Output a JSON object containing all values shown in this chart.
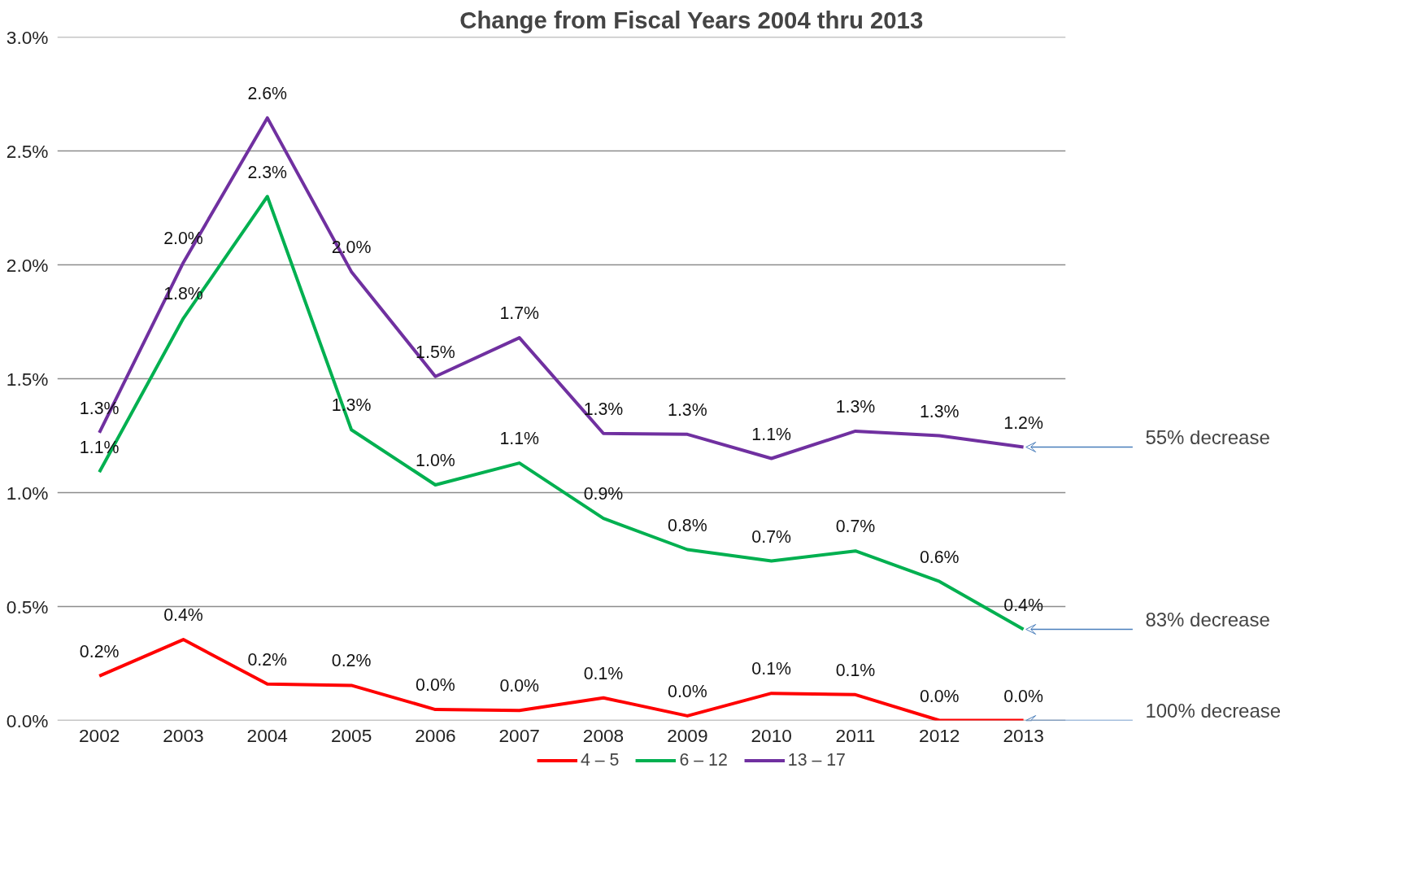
{
  "chart_data": {
    "type": "line",
    "title": "Change from Fiscal Years 2004 thru 2013",
    "categories": [
      "2002",
      "2003",
      "2004",
      "2005",
      "2006",
      "2007",
      "2008",
      "2009",
      "2010",
      "2011",
      "2012",
      "2013"
    ],
    "series": [
      {
        "name": "4 – 5",
        "color": "#ff0000",
        "values": [
          0.195,
          0.355,
          0.16,
          0.154,
          0.048,
          0.044,
          0.099,
          0.02,
          0.119,
          0.113,
          0.0,
          0.0
        ],
        "value_labels": [
          "0.2%",
          "0.4%",
          "0.2%",
          "0.2%",
          "0.0%",
          "0.0%",
          "0.1%",
          "0.0%",
          "0.1%",
          "0.1%",
          "0.0%",
          "0.0%"
        ]
      },
      {
        "name": "6 – 12",
        "color": "#00b050",
        "values": [
          1.09,
          1.765,
          2.3,
          1.276,
          1.034,
          1.13,
          0.887,
          0.75,
          0.7,
          0.744,
          0.61,
          0.4
        ],
        "value_labels": [
          "1.1%",
          "1.8%",
          "2.3%",
          "1.3%",
          "1.0%",
          "1.1%",
          "0.9%",
          "0.8%",
          "0.7%",
          "0.7%",
          "0.6%",
          "0.4%"
        ]
      },
      {
        "name": "13 – 17",
        "color": "#7030a0",
        "values": [
          1.263,
          2.01,
          2.645,
          1.97,
          1.51,
          1.68,
          1.26,
          1.256,
          1.15,
          1.27,
          1.25,
          1.2
        ],
        "value_labels": [
          "1.3%",
          "2.0%",
          "2.6%",
          "2.0%",
          "1.5%",
          "1.7%",
          "1.3%",
          "1.3%",
          "1.1%",
          "1.3%",
          "1.3%",
          "1.2%"
        ]
      }
    ],
    "ylim": [
      0,
      3.0
    ],
    "yticks": [
      {
        "value": 0,
        "label": "0.0%"
      },
      {
        "value": 0.5,
        "label": "0.5%"
      },
      {
        "value": 1.0,
        "label": "1.0%"
      },
      {
        "value": 1.5,
        "label": "1.5%"
      },
      {
        "value": 2.0,
        "label": "2.0%"
      },
      {
        "value": 2.5,
        "label": "2.5%"
      },
      {
        "value": 3.0,
        "label": "3.0%"
      }
    ],
    "grid": "y",
    "legend": "bottom",
    "marker": "none",
    "line_style": "solid",
    "annotations": [
      {
        "text": "55% decrease",
        "x": "2013",
        "y": 1.2
      },
      {
        "text": "83% decrease",
        "x": "2013",
        "y": 0.4
      },
      {
        "text": "100% decrease",
        "x": "2013",
        "y": 0.0
      }
    ]
  }
}
